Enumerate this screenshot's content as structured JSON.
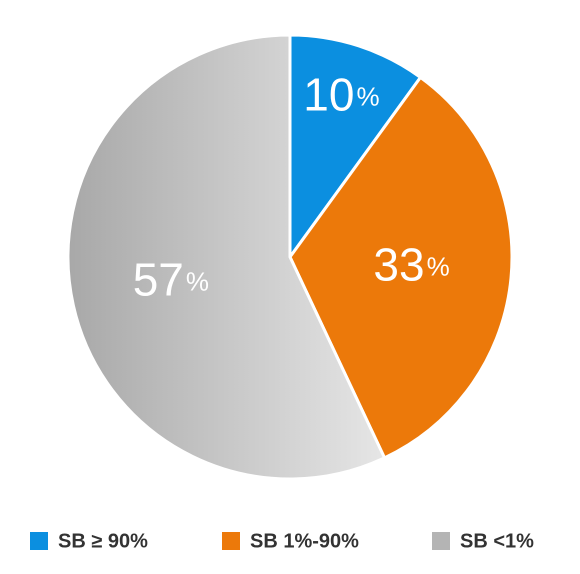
{
  "chart_data": {
    "type": "pie",
    "categories": [
      "SB ≥ 90%",
      "SB 1%-90%",
      "SB <1%"
    ],
    "values": [
      10,
      33,
      57
    ],
    "value_labels": [
      "10%",
      "33%",
      "57%"
    ],
    "colors": [
      "#0b8fe0",
      "#ec790a",
      "#c4c4c4"
    ],
    "legend": "bottom"
  }
}
